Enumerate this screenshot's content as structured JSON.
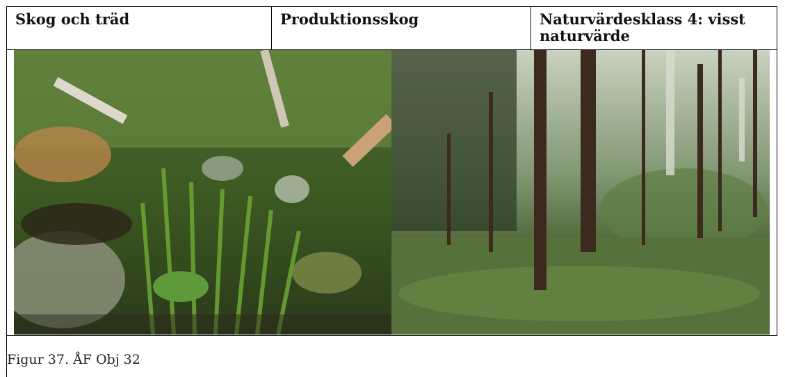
{
  "table": {
    "header": [
      "Skog och träd",
      "Produktionsskog",
      "Naturvärdesklass 4: visst naturvärde"
    ]
  },
  "caption": "Figur 37. ÅF Obj 32"
}
